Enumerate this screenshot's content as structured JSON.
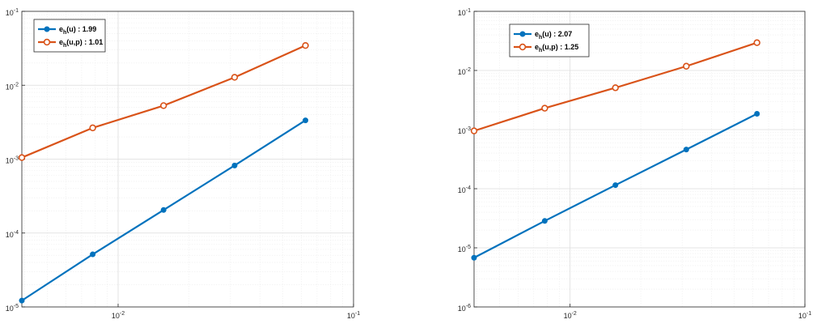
{
  "chart_data": [
    {
      "type": "line",
      "xscale": "log",
      "yscale": "log",
      "xlim": [
        0.0039,
        0.1
      ],
      "ylim": [
        1e-05,
        0.1
      ],
      "grid": true,
      "minor_grid": true,
      "legend_position": "top-left",
      "x_ticks": [
        {
          "value": 0.01,
          "base": "10",
          "exp": "-2"
        },
        {
          "value": 0.1,
          "base": "10",
          "exp": "-1"
        }
      ],
      "y_ticks": [
        {
          "value": 1e-05,
          "base": "10",
          "exp": "-5"
        },
        {
          "value": 0.0001,
          "base": "10",
          "exp": "-4"
        },
        {
          "value": 0.001,
          "base": "10",
          "exp": "-3"
        },
        {
          "value": 0.01,
          "base": "10",
          "exp": "-2"
        },
        {
          "value": 0.1,
          "base": "10",
          "exp": "-1"
        }
      ],
      "x": [
        0.0039,
        0.0078,
        0.0156,
        0.03125,
        0.0625
      ],
      "series": [
        {
          "name": "e_h(u) : 1.99",
          "label_base": "e",
          "label_sub": "h",
          "label_rest": "(u) : 1.99",
          "color": "#0072BD",
          "marker": "filled-circle",
          "values": [
            1.22e-05,
            5.15e-05,
            0.000205,
            0.00082,
            0.00335
          ]
        },
        {
          "name": "e_h(u,p) : 1.01",
          "label_base": "e",
          "label_sub": "h",
          "label_rest": "(u,p) : 1.01",
          "color": "#D95319",
          "marker": "open-circle",
          "values": [
            0.00105,
            0.00265,
            0.0053,
            0.0128,
            0.0345
          ]
        }
      ]
    },
    {
      "type": "line",
      "xscale": "log",
      "yscale": "log",
      "xlim": [
        0.0039,
        0.1
      ],
      "ylim": [
        1e-06,
        0.1
      ],
      "grid": true,
      "minor_grid": true,
      "legend_position": "top-left",
      "x_ticks": [
        {
          "value": 0.01,
          "base": "10",
          "exp": "-2"
        },
        {
          "value": 0.1,
          "base": "10",
          "exp": "-1"
        }
      ],
      "y_ticks": [
        {
          "value": 1e-06,
          "base": "10",
          "exp": "-6"
        },
        {
          "value": 1e-05,
          "base": "10",
          "exp": "-5"
        },
        {
          "value": 0.0001,
          "base": "10",
          "exp": "-4"
        },
        {
          "value": 0.001,
          "base": "10",
          "exp": "-3"
        },
        {
          "value": 0.01,
          "base": "10",
          "exp": "-2"
        },
        {
          "value": 0.1,
          "base": "10",
          "exp": "-1"
        }
      ],
      "x": [
        0.0039,
        0.0078,
        0.0156,
        0.03125,
        0.0625
      ],
      "series": [
        {
          "name": "e_h(u) : 2.07",
          "label_base": "e",
          "label_sub": "h",
          "label_rest": "(u) : 2.07",
          "color": "#0072BD",
          "marker": "filled-circle",
          "values": [
            6.8e-06,
            2.85e-05,
            0.000115,
            0.00046,
            0.00185
          ]
        },
        {
          "name": "e_h(u,p) : 1.25",
          "label_base": "e",
          "label_sub": "h",
          "label_rest": "(u,p) : 1.25",
          "color": "#D95319",
          "marker": "open-circle",
          "values": [
            0.00095,
            0.0023,
            0.0051,
            0.0118,
            0.0295
          ]
        }
      ]
    }
  ]
}
